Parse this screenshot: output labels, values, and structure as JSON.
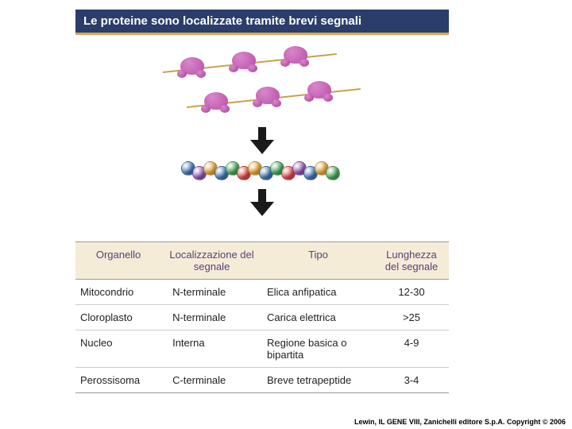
{
  "title": "Le proteine sono localizzate tramite brevi segnali",
  "title_bar": {
    "background": "#2a3d6b",
    "text_color": "#ffffff",
    "underline_color": "#d9a84e",
    "font_size": 15
  },
  "ribosome": {
    "rows": 2,
    "per_row": 3,
    "strand_color": "#c9a24a",
    "large_subunit_color": "#b84fa8",
    "large_subunit_highlight": "#d986c9",
    "small_subunit_color": "#a83f98"
  },
  "arrow": {
    "fill": "#1a1a1a",
    "width": 30,
    "height": 34
  },
  "chain_colors": [
    "#3a6fb0",
    "#8a4fa8",
    "#e0a030",
    "#3a6fb0",
    "#3fa050",
    "#d94040",
    "#e0a030",
    "#3a6fb0",
    "#3fa050",
    "#d94040",
    "#8a4fa8",
    "#3a6fb0",
    "#e0a030",
    "#3fa050"
  ],
  "table": {
    "header_bg": "#f5ecd8",
    "header_color": "#5a3d7a",
    "columns": [
      "Organello",
      "Localizzazione del segnale",
      "Tipo",
      "Lunghezza del segnale"
    ],
    "rows": [
      [
        "Mitocondrio",
        "N-terminale",
        "Elica anfipatica",
        "12-30"
      ],
      [
        "Cloroplasto",
        "N-terminale",
        "Carica elettrica",
        ">25"
      ],
      [
        "Nucleo",
        "Interna",
        "Regione basica o bipartita",
        "4-9"
      ],
      [
        "Perossisoma",
        "C-terminale",
        "Breve tetrapeptide",
        "3-4"
      ]
    ]
  },
  "copyright": "Lewin, IL GENE VIII, Zanichelli editore S.p.A. Copyright © 2006"
}
